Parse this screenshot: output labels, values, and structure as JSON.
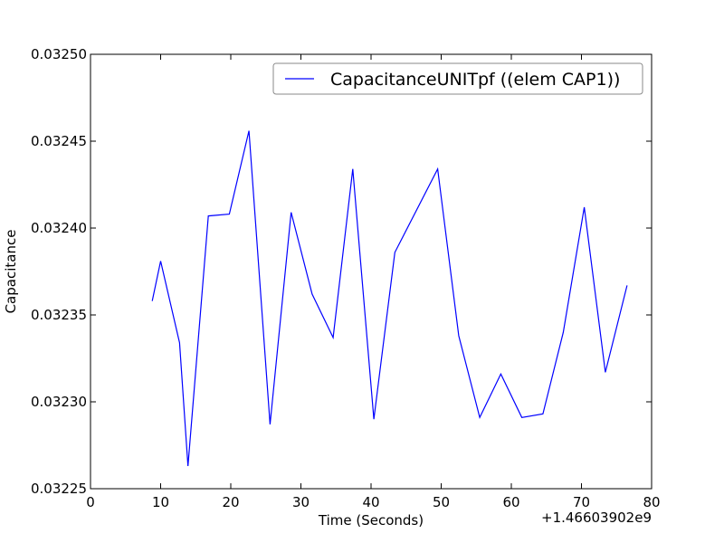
{
  "chart_data": {
    "type": "line",
    "xlabel": "Time (Seconds)",
    "ylabel": "Capacitance",
    "x_offset_label": "+1.46603902e9",
    "xlim": [
      0,
      80
    ],
    "ylim": [
      0.03225,
      0.0325
    ],
    "x_ticks": [
      0,
      10,
      20,
      30,
      40,
      50,
      60,
      70,
      80
    ],
    "x_tick_labels": [
      "0",
      "10",
      "20",
      "30",
      "40",
      "50",
      "60",
      "70",
      "80"
    ],
    "y_ticks": [
      0.03225,
      0.0323,
      0.03235,
      0.0324,
      0.03245,
      0.0325
    ],
    "y_tick_labels": [
      "0.03225",
      "0.03230",
      "0.03235",
      "0.03240",
      "0.03245",
      "0.03250"
    ],
    "grid": false,
    "legend_position": "top-right",
    "series": [
      {
        "name": "CapacitanceUNITpf ((elem CAP1))",
        "color": "#0000ff",
        "x": [
          8.8,
          10.0,
          12.7,
          13.9,
          16.8,
          19.8,
          22.6,
          25.6,
          28.6,
          31.6,
          34.6,
          37.4,
          40.4,
          43.4,
          49.5,
          52.5,
          55.5,
          58.5,
          61.5,
          64.5,
          67.4,
          70.4,
          73.4,
          76.5
        ],
        "values": [
          0.032358,
          0.032381,
          0.032334,
          0.032263,
          0.032407,
          0.032408,
          0.032456,
          0.032287,
          0.032409,
          0.032362,
          0.032337,
          0.032434,
          0.03229,
          0.032386,
          0.032434,
          0.032338,
          0.032291,
          0.032316,
          0.032291,
          0.032293,
          0.03234,
          0.032412,
          0.032317,
          0.032367
        ]
      }
    ]
  }
}
